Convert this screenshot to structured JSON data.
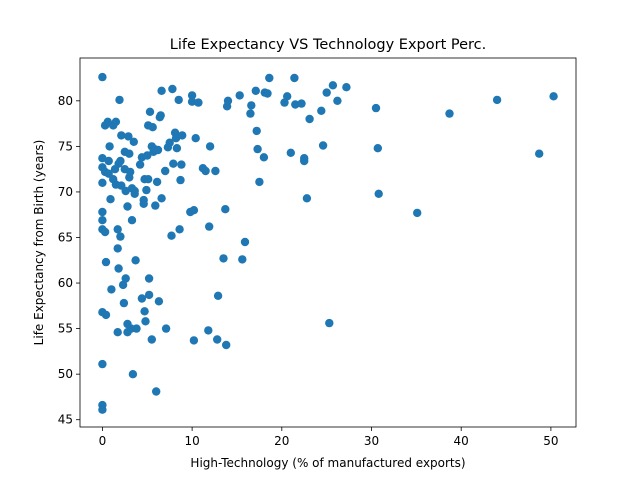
{
  "chart_data": {
    "type": "scatter",
    "title": "Life Expectancy VS Technology Export Perc.",
    "xlabel": "High-Technology (% of manufactured exports)",
    "ylabel": "Life Expectancy from Birth (years)",
    "xlim": [
      -2.5,
      52.8
    ],
    "ylim": [
      44.2,
      84.7
    ],
    "xticks": [
      0,
      10,
      20,
      30,
      40,
      50
    ],
    "yticks": [
      45,
      50,
      55,
      60,
      65,
      70,
      75,
      80
    ],
    "grid": false,
    "legend": "none",
    "marker_color": "#1f77b4",
    "points": [
      [
        0.0,
        82.6
      ],
      [
        0.0,
        73.7
      ],
      [
        0.0,
        72.7
      ],
      [
        0.0,
        71.0
      ],
      [
        0.0,
        67.8
      ],
      [
        0.0,
        66.9
      ],
      [
        0.0,
        65.9
      ],
      [
        0.0,
        56.8
      ],
      [
        0.0,
        51.1
      ],
      [
        0.0,
        46.6
      ],
      [
        0.0,
        46.1
      ],
      [
        0.3,
        77.3
      ],
      [
        0.3,
        72.2
      ],
      [
        0.3,
        65.6
      ],
      [
        0.4,
        62.3
      ],
      [
        0.4,
        56.5
      ],
      [
        0.6,
        77.7
      ],
      [
        0.7,
        73.4
      ],
      [
        0.7,
        72.0
      ],
      [
        0.8,
        75.0
      ],
      [
        0.9,
        69.2
      ],
      [
        1.0,
        59.3
      ],
      [
        1.2,
        77.3
      ],
      [
        1.2,
        71.4
      ],
      [
        1.4,
        72.5
      ],
      [
        1.5,
        77.7
      ],
      [
        1.5,
        70.8
      ],
      [
        1.7,
        65.9
      ],
      [
        1.7,
        63.8
      ],
      [
        1.7,
        54.6
      ],
      [
        1.8,
        73.1
      ],
      [
        1.8,
        61.6
      ],
      [
        1.9,
        80.1
      ],
      [
        2.0,
        73.4
      ],
      [
        2.0,
        65.1
      ],
      [
        2.1,
        76.2
      ],
      [
        2.1,
        70.7
      ],
      [
        2.3,
        59.8
      ],
      [
        2.4,
        57.8
      ],
      [
        2.5,
        74.4
      ],
      [
        2.5,
        72.5
      ],
      [
        2.6,
        70.1
      ],
      [
        2.6,
        60.5
      ],
      [
        2.8,
        68.4
      ],
      [
        2.8,
        55.5
      ],
      [
        2.8,
        54.6
      ],
      [
        2.9,
        76.1
      ],
      [
        3.0,
        74.2
      ],
      [
        3.0,
        71.6
      ],
      [
        3.1,
        72.2
      ],
      [
        3.2,
        55.0
      ],
      [
        3.3,
        70.4
      ],
      [
        3.3,
        66.9
      ],
      [
        3.4,
        50.0
      ],
      [
        3.5,
        75.5
      ],
      [
        3.6,
        70.1
      ],
      [
        3.6,
        69.8
      ],
      [
        3.7,
        62.5
      ],
      [
        3.8,
        55.0
      ],
      [
        4.2,
        73.0
      ],
      [
        4.4,
        58.3
      ],
      [
        4.4,
        73.8
      ],
      [
        4.6,
        69.1
      ],
      [
        4.6,
        68.7
      ],
      [
        4.7,
        71.4
      ],
      [
        4.7,
        56.9
      ],
      [
        4.8,
        55.8
      ],
      [
        4.9,
        70.2
      ],
      [
        5.0,
        74.0
      ],
      [
        5.1,
        77.3
      ],
      [
        5.1,
        71.4
      ],
      [
        5.2,
        60.5
      ],
      [
        5.2,
        58.7
      ],
      [
        5.3,
        78.8
      ],
      [
        5.5,
        75.0
      ],
      [
        5.5,
        53.8
      ],
      [
        5.6,
        77.1
      ],
      [
        5.7,
        74.4
      ],
      [
        5.8,
        74.7
      ],
      [
        5.9,
        68.5
      ],
      [
        6.0,
        48.1
      ],
      [
        6.1,
        71.1
      ],
      [
        6.2,
        74.6
      ],
      [
        6.3,
        58.0
      ],
      [
        6.4,
        78.2
      ],
      [
        6.5,
        78.4
      ],
      [
        6.6,
        69.3
      ],
      [
        6.6,
        81.1
      ],
      [
        7.0,
        72.3
      ],
      [
        7.1,
        55.0
      ],
      [
        7.3,
        74.9
      ],
      [
        7.5,
        75.4
      ],
      [
        7.7,
        65.2
      ],
      [
        7.8,
        81.3
      ],
      [
        7.9,
        73.1
      ],
      [
        8.1,
        76.5
      ],
      [
        8.2,
        75.9
      ],
      [
        8.3,
        74.8
      ],
      [
        8.5,
        80.1
      ],
      [
        8.6,
        65.9
      ],
      [
        8.7,
        71.3
      ],
      [
        8.8,
        73.0
      ],
      [
        8.9,
        76.2
      ],
      [
        9.8,
        67.8
      ],
      [
        10.0,
        80.6
      ],
      [
        10.0,
        79.9
      ],
      [
        10.2,
        68.0
      ],
      [
        10.2,
        53.7
      ],
      [
        10.4,
        75.9
      ],
      [
        10.7,
        79.8
      ],
      [
        11.2,
        72.6
      ],
      [
        11.5,
        72.3
      ],
      [
        11.8,
        54.8
      ],
      [
        11.9,
        66.2
      ],
      [
        12.0,
        75.0
      ],
      [
        12.6,
        72.3
      ],
      [
        12.8,
        53.8
      ],
      [
        12.9,
        58.6
      ],
      [
        13.5,
        62.7
      ],
      [
        13.7,
        68.1
      ],
      [
        13.8,
        53.2
      ],
      [
        13.9,
        79.4
      ],
      [
        14.0,
        80.0
      ],
      [
        15.3,
        80.6
      ],
      [
        15.6,
        62.6
      ],
      [
        15.9,
        64.5
      ],
      [
        16.5,
        78.6
      ],
      [
        16.6,
        79.5
      ],
      [
        17.1,
        81.1
      ],
      [
        17.2,
        76.7
      ],
      [
        17.3,
        74.7
      ],
      [
        17.5,
        71.1
      ],
      [
        18.0,
        73.8
      ],
      [
        18.1,
        80.9
      ],
      [
        18.4,
        80.8
      ],
      [
        18.6,
        82.5
      ],
      [
        20.3,
        79.8
      ],
      [
        20.6,
        80.5
      ],
      [
        21.0,
        74.3
      ],
      [
        21.4,
        82.5
      ],
      [
        21.5,
        79.6
      ],
      [
        22.2,
        79.7
      ],
      [
        22.5,
        73.7
      ],
      [
        22.5,
        73.4
      ],
      [
        22.8,
        69.3
      ],
      [
        23.1,
        78.0
      ],
      [
        24.4,
        78.9
      ],
      [
        24.6,
        75.1
      ],
      [
        25.0,
        80.9
      ],
      [
        25.3,
        55.6
      ],
      [
        25.7,
        81.7
      ],
      [
        26.2,
        80.0
      ],
      [
        27.2,
        81.5
      ],
      [
        30.5,
        79.2
      ],
      [
        30.7,
        74.8
      ],
      [
        30.8,
        69.8
      ],
      [
        35.1,
        67.7
      ],
      [
        38.7,
        78.6
      ],
      [
        44.0,
        80.1
      ],
      [
        48.7,
        74.2
      ],
      [
        50.3,
        80.5
      ]
    ]
  }
}
